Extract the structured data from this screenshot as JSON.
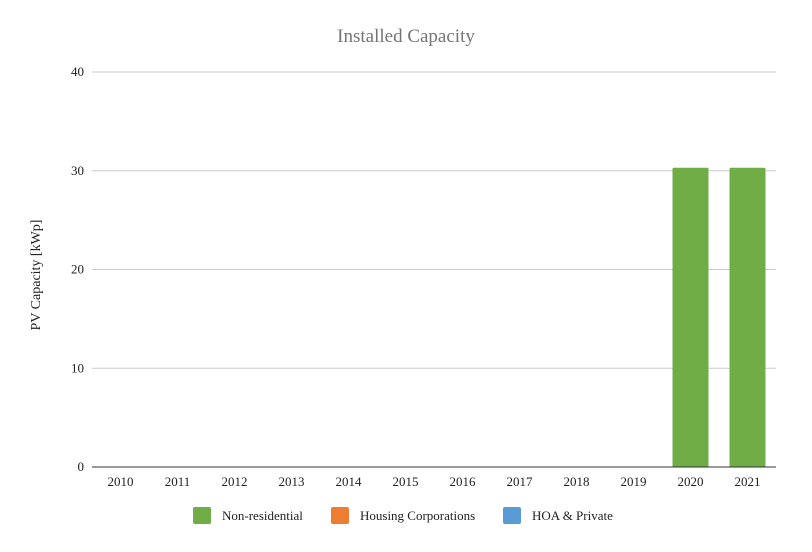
{
  "chart_data": {
    "type": "bar",
    "stacked": true,
    "title": "Installed Capacity",
    "xlabel": "",
    "ylabel": "PV Capacity [kWp]",
    "ylim": [
      0,
      40
    ],
    "yticks": [
      "0",
      "10",
      "20",
      "30",
      "40"
    ],
    "grid": true,
    "legend_position": "bottom",
    "categories": [
      "2010",
      "2011",
      "2012",
      "2013",
      "2014",
      "2015",
      "2016",
      "2017",
      "2018",
      "2019",
      "2020",
      "2021"
    ],
    "series": [
      {
        "name": "HOA & Private",
        "color": "#5b9bd5",
        "values": [
          0,
          0,
          0,
          0,
          0,
          0,
          0,
          0,
          0,
          0,
          0,
          0
        ]
      },
      {
        "name": "Housing Corporations",
        "color": "#ed7d31",
        "values": [
          0,
          0,
          0,
          0,
          0,
          0,
          0,
          0,
          0,
          0,
          0,
          0
        ]
      },
      {
        "name": "Non-residential",
        "color": "#70ad47",
        "values": [
          0,
          0,
          0,
          0,
          0,
          0,
          0,
          0,
          0,
          0,
          30.3,
          30.3
        ]
      }
    ],
    "legend_order": [
      "Non-residential",
      "Housing Corporations",
      "HOA & Private"
    ]
  }
}
